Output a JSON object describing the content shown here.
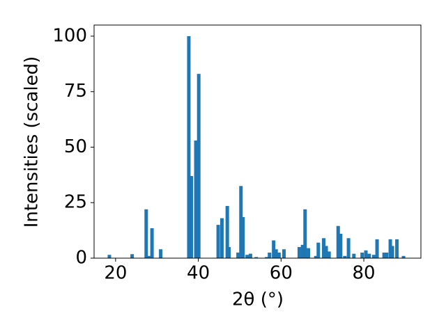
{
  "chart_data": {
    "type": "bar",
    "x_label": "2θ (°)",
    "y_label": "Intensities (scaled)",
    "color": "#1f77b4",
    "x": [
      18.5,
      24,
      27.4,
      28,
      28.8,
      30.9,
      37.7,
      38.3,
      39.4,
      40.1,
      44.8,
      45.7,
      47,
      47.4,
      49.6,
      50.3,
      50.8,
      51.8,
      52.6,
      54,
      56.5,
      57.2,
      58.2,
      58.8,
      59.5,
      60.7,
      64.4,
      65.2,
      65.8,
      66.6,
      68.4,
      69,
      70.3,
      70.9,
      71.6,
      73.8,
      74.4,
      75.4,
      76.3,
      77.6,
      79.6,
      80.5,
      81.3,
      82.4,
      83.2,
      84.9,
      85.5,
      86.4,
      86.9,
      88,
      89.6
    ],
    "values": [
      1.5,
      1.8,
      22,
      1,
      13.5,
      4,
      100,
      37,
      53,
      83,
      15,
      18,
      23.5,
      5,
      2.5,
      32.5,
      18.5,
      1.5,
      2,
      0.5,
      0.5,
      2.5,
      8,
      4,
      2.5,
      4,
      5,
      6,
      22,
      4.5,
      1,
      7,
      9,
      5.5,
      3,
      14.5,
      11,
      1,
      9,
      2,
      2.5,
      3.5,
      2,
      1.5,
      8.5,
      2.5,
      2.5,
      8.5,
      5.5,
      8.5,
      1
    ],
    "xlim": [
      14.8,
      93.8
    ],
    "ylim": [
      0,
      105
    ],
    "xticks": [
      20,
      40,
      60,
      80
    ],
    "yticks": [
      0,
      25,
      50,
      75,
      100
    ]
  }
}
